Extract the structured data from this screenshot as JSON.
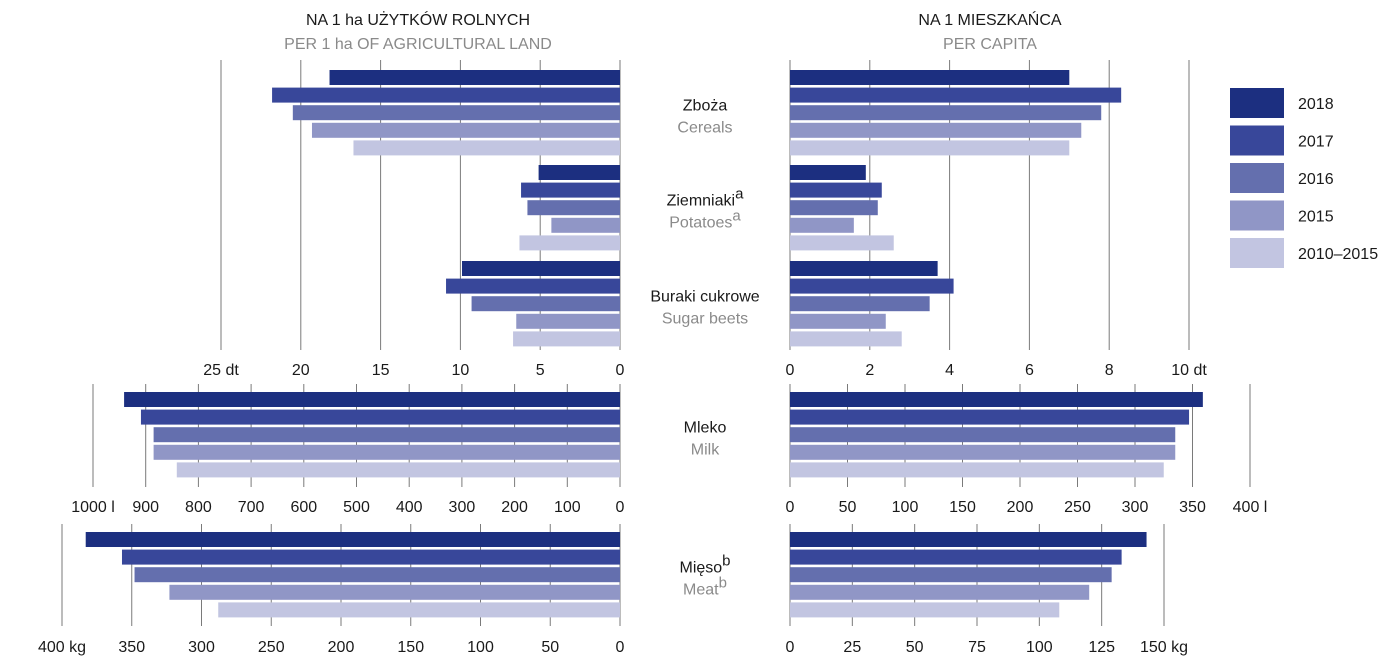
{
  "headings": {
    "left_title": "NA 1 ha UŻYTKÓW ROLNYCH",
    "left_subtitle": "PER 1 ha OF AGRICULTURAL LAND",
    "right_title": "NA 1 MIESZKAŃCA",
    "right_subtitle": "PER CAPITA"
  },
  "legend": {
    "placement": "top-right",
    "items": [
      {
        "label": "2018",
        "color": "#1c2f80"
      },
      {
        "label": "2017",
        "color": "#38479a"
      },
      {
        "label": "2016",
        "color": "#646fae"
      },
      {
        "label": "2015",
        "color": "#9096c6"
      },
      {
        "label": "2010–2015",
        "color": "#c2c5e1"
      }
    ]
  },
  "chart_data": [
    {
      "type": "bar",
      "orientation": "horizontal",
      "panel": "crops-per-ha",
      "categories": [
        {
          "pl": "Zboża",
          "en": "Cereals",
          "sup": ""
        },
        {
          "pl": "Ziemniaki",
          "en": "Potatoes",
          "sup": "a"
        },
        {
          "pl": "Buraki cukrowe",
          "en": "Sugar beets",
          "sup": ""
        }
      ],
      "series": [
        {
          "name": "2018",
          "values": [
            18.2,
            5.1,
            9.9
          ]
        },
        {
          "name": "2017",
          "values": [
            21.8,
            6.2,
            10.9
          ]
        },
        {
          "name": "2016",
          "values": [
            20.5,
            5.8,
            9.3
          ]
        },
        {
          "name": "2015",
          "values": [
            19.3,
            4.3,
            6.5
          ]
        },
        {
          "name": "2010–2015",
          "values": [
            16.7,
            6.3,
            6.7
          ]
        }
      ],
      "xlim": [
        0,
        25
      ],
      "ticks": [
        0,
        5,
        10,
        15,
        20,
        25
      ],
      "tick_labels": [
        "0",
        "5",
        "10",
        "15",
        "20",
        "25 dt"
      ],
      "grid": true
    },
    {
      "type": "bar",
      "orientation": "horizontal",
      "panel": "crops-per-capita",
      "categories": [
        "Zboża",
        "Ziemniaki",
        "Buraki cukrowe"
      ],
      "series": [
        {
          "name": "2018",
          "values": [
            7.0,
            1.9,
            3.7
          ]
        },
        {
          "name": "2017",
          "values": [
            8.3,
            2.3,
            4.1
          ]
        },
        {
          "name": "2016",
          "values": [
            7.8,
            2.2,
            3.5
          ]
        },
        {
          "name": "2015",
          "values": [
            7.3,
            1.6,
            2.4
          ]
        },
        {
          "name": "2010–2015",
          "values": [
            7.0,
            2.6,
            2.8
          ]
        }
      ],
      "xlim": [
        0,
        10
      ],
      "ticks": [
        0,
        2,
        4,
        6,
        8,
        10
      ],
      "tick_labels": [
        "0",
        "2",
        "4",
        "6",
        "8",
        "10 dt"
      ],
      "grid": true
    },
    {
      "type": "bar",
      "orientation": "horizontal",
      "panel": "milk-per-ha",
      "categories": [
        {
          "pl": "Mleko",
          "en": "Milk",
          "sup": ""
        }
      ],
      "series": [
        {
          "name": "2018",
          "values": [
            941
          ]
        },
        {
          "name": "2017",
          "values": [
            909
          ]
        },
        {
          "name": "2016",
          "values": [
            885
          ]
        },
        {
          "name": "2015",
          "values": [
            885
          ]
        },
        {
          "name": "2010–2015",
          "values": [
            841
          ]
        }
      ],
      "xlim": [
        0,
        1000
      ],
      "ticks": [
        0,
        100,
        200,
        300,
        400,
        500,
        600,
        700,
        800,
        900,
        1000
      ],
      "tick_labels": [
        "0",
        "100",
        "200",
        "300",
        "400",
        "500",
        "600",
        "700",
        "800",
        "900",
        "1000 l"
      ],
      "grid": true
    },
    {
      "type": "bar",
      "orientation": "horizontal",
      "panel": "milk-per-capita",
      "categories": [
        "Mleko"
      ],
      "series": [
        {
          "name": "2018",
          "values": [
            359
          ]
        },
        {
          "name": "2017",
          "values": [
            347
          ]
        },
        {
          "name": "2016",
          "values": [
            335
          ]
        },
        {
          "name": "2015",
          "values": [
            335
          ]
        },
        {
          "name": "2010–2015",
          "values": [
            325
          ]
        }
      ],
      "xlim": [
        0,
        400
      ],
      "ticks": [
        0,
        50,
        100,
        150,
        200,
        250,
        300,
        350,
        400
      ],
      "tick_labels": [
        "0",
        "50",
        "100",
        "150",
        "200",
        "250",
        "300",
        "350",
        "400 l"
      ],
      "grid": true
    },
    {
      "type": "bar",
      "orientation": "horizontal",
      "panel": "meat-per-ha",
      "categories": [
        {
          "pl": "Mięso",
          "en": "Meat",
          "sup": "b"
        }
      ],
      "series": [
        {
          "name": "2018",
          "values": [
            383
          ]
        },
        {
          "name": "2017",
          "values": [
            357
          ]
        },
        {
          "name": "2016",
          "values": [
            348
          ]
        },
        {
          "name": "2015",
          "values": [
            323
          ]
        },
        {
          "name": "2010–2015",
          "values": [
            288
          ]
        }
      ],
      "xlim": [
        0,
        400
      ],
      "ticks": [
        0,
        50,
        100,
        150,
        200,
        250,
        300,
        350,
        400
      ],
      "tick_labels": [
        "0",
        "50",
        "100",
        "150",
        "200",
        "250",
        "300",
        "350",
        "400 kg"
      ],
      "grid": true
    },
    {
      "type": "bar",
      "orientation": "horizontal",
      "panel": "meat-per-capita",
      "categories": [
        "Mięso"
      ],
      "series": [
        {
          "name": "2018",
          "values": [
            143
          ]
        },
        {
          "name": "2017",
          "values": [
            133
          ]
        },
        {
          "name": "2016",
          "values": [
            129
          ]
        },
        {
          "name": "2015",
          "values": [
            120
          ]
        },
        {
          "name": "2010–2015",
          "values": [
            108
          ]
        }
      ],
      "xlim": [
        0,
        150
      ],
      "ticks": [
        0,
        25,
        50,
        75,
        100,
        125,
        150
      ],
      "tick_labels": [
        "0",
        "25",
        "50",
        "75",
        "100",
        "125",
        "150 kg"
      ],
      "grid": true
    }
  ]
}
